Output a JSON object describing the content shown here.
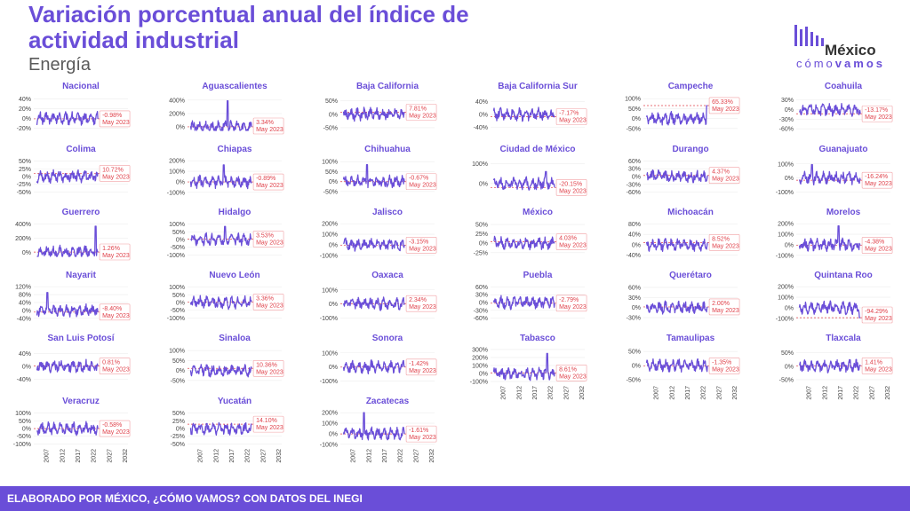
{
  "header": {
    "title": "Variación porcentual anual del índice de actividad industrial",
    "subtitle": "Energía"
  },
  "logo": {
    "main": "México",
    "sub_a": "cómo",
    "sub_b": "vamos"
  },
  "footer": {
    "text": "ELABORADO POR MÉXICO, ¿CÓMO VAMOS? CON DATOS DEL INEGI"
  },
  "colors": {
    "line": "#6a4ed8",
    "accent": "#e0424b",
    "grid": "#eeeeee"
  },
  "chart_data": {
    "type": "line",
    "x_ticks": [
      2007,
      2012,
      2017,
      2022,
      2027,
      2032
    ],
    "xlim": [
      2003,
      2033
    ],
    "series_range": [
      2004,
      2023.4
    ],
    "last_period": "May 2023",
    "grid": true,
    "panels": [
      {
        "name": "Nacional",
        "last_value": "-0.98%",
        "y_ticks": [
          "-20%",
          "0%",
          "20%",
          "40%"
        ],
        "ylim": [
          -25,
          45
        ],
        "spikes": []
      },
      {
        "name": "Aguascalientes",
        "last_value": "3.34%",
        "y_ticks": [
          "0%",
          "200%",
          "400%"
        ],
        "ylim": [
          -50,
          450
        ],
        "spikes": [
          {
            "x": 2015.8,
            "y": 390
          }
        ]
      },
      {
        "name": "Baja California",
        "last_value": "7.81%",
        "y_ticks": [
          "-50%",
          "0%",
          "50%"
        ],
        "ylim": [
          -60,
          65
        ],
        "spikes": []
      },
      {
        "name": "Baja California Sur",
        "last_value": "-7.17%",
        "y_ticks": [
          "-40%",
          "0%",
          "40%"
        ],
        "ylim": [
          -50,
          55
        ],
        "spikes": []
      },
      {
        "name": "Campeche",
        "last_value": "65.33%",
        "y_ticks": [
          "-50%",
          "0%",
          "50%",
          "100%"
        ],
        "ylim": [
          -60,
          110
        ],
        "spikes": [
          {
            "x": 2023.3,
            "y": 65
          }
        ]
      },
      {
        "name": "Coahuila",
        "last_value": "-13.17%",
        "y_ticks": [
          "-60%",
          "-30%",
          "0%",
          "30%"
        ],
        "ylim": [
          -65,
          40
        ],
        "spikes": []
      },
      {
        "name": "Colima",
        "last_value": "10.72%",
        "y_ticks": [
          "-50%",
          "-25%",
          "0%",
          "25%",
          "50%"
        ],
        "ylim": [
          -55,
          55
        ],
        "spikes": []
      },
      {
        "name": "Chiapas",
        "last_value": "-0.89%",
        "y_ticks": [
          "-100%",
          "0%",
          "100%",
          "200%"
        ],
        "ylim": [
          -110,
          210
        ],
        "spikes": [
          {
            "x": 2014.5,
            "y": 160
          }
        ]
      },
      {
        "name": "Chihuahua",
        "last_value": "-0.67%",
        "y_ticks": [
          "-50%",
          "0%",
          "50%",
          "100%"
        ],
        "ylim": [
          -60,
          110
        ],
        "spikes": [
          {
            "x": 2011.5,
            "y": 85
          }
        ]
      },
      {
        "name": "Ciudad de México",
        "last_value": "-20.15%",
        "y_ticks": [
          "0%",
          "100%"
        ],
        "ylim": [
          -50,
          120
        ],
        "spikes": [
          {
            "x": 2020.6,
            "y": 60
          }
        ]
      },
      {
        "name": "Durango",
        "last_value": "4.37%",
        "y_ticks": [
          "-60%",
          "-30%",
          "0%",
          "30%",
          "60%"
        ],
        "ylim": [
          -65,
          65
        ],
        "spikes": []
      },
      {
        "name": "Guanajuato",
        "last_value": "-16.24%",
        "y_ticks": [
          "-100%",
          "0%",
          "100%"
        ],
        "ylim": [
          -110,
          130
        ],
        "spikes": [
          {
            "x": 2008,
            "y": 95
          }
        ]
      },
      {
        "name": "Guerrero",
        "last_value": "1.26%",
        "y_ticks": [
          "0%",
          "200%",
          "400%"
        ],
        "ylim": [
          -60,
          420
        ],
        "spikes": [
          {
            "x": 2022.7,
            "y": 370
          }
        ]
      },
      {
        "name": "Hidalgo",
        "last_value": "3.53%",
        "y_ticks": [
          "-100%",
          "-50%",
          "0%",
          "50%",
          "100%"
        ],
        "ylim": [
          -110,
          110
        ],
        "spikes": [
          {
            "x": 2015,
            "y": 85
          }
        ]
      },
      {
        "name": "Jalisco",
        "last_value": "-3.15%",
        "y_ticks": [
          "-100%",
          "0%",
          "100%",
          "200%"
        ],
        "ylim": [
          -110,
          210
        ],
        "spikes": []
      },
      {
        "name": "México",
        "last_value": "4.03%",
        "y_ticks": [
          "-25%",
          "0%",
          "25%",
          "50%"
        ],
        "ylim": [
          -35,
          55
        ],
        "spikes": []
      },
      {
        "name": "Michoacán",
        "last_value": "8.52%",
        "y_ticks": [
          "-40%",
          "0%",
          "40%",
          "80%"
        ],
        "ylim": [
          -45,
          85
        ],
        "spikes": []
      },
      {
        "name": "Morelos",
        "last_value": "-4.38%",
        "y_ticks": [
          "-100%",
          "0%",
          "100%",
          "200%"
        ],
        "ylim": [
          -110,
          210
        ],
        "spikes": [
          {
            "x": 2016.5,
            "y": 180
          }
        ]
      },
      {
        "name": "Nayarit",
        "last_value": "-8.40%",
        "y_ticks": [
          "-40%",
          "0%",
          "40%",
          "80%",
          "120%"
        ],
        "ylim": [
          -45,
          125
        ],
        "spikes": [
          {
            "x": 2007.3,
            "y": 90
          }
        ]
      },
      {
        "name": "Nuevo León",
        "last_value": "3.36%",
        "y_ticks": [
          "-100%",
          "-50%",
          "0%",
          "50%",
          "100%"
        ],
        "ylim": [
          -110,
          110
        ],
        "spikes": []
      },
      {
        "name": "Oaxaca",
        "last_value": "2.34%",
        "y_ticks": [
          "-100%",
          "0%",
          "100%"
        ],
        "ylim": [
          -110,
          130
        ],
        "spikes": []
      },
      {
        "name": "Puebla",
        "last_value": "-2.79%",
        "y_ticks": [
          "-60%",
          "-30%",
          "0%",
          "30%",
          "60%"
        ],
        "ylim": [
          -65,
          65
        ],
        "spikes": []
      },
      {
        "name": "Querétaro",
        "last_value": "2.00%",
        "y_ticks": [
          "-30%",
          "0%",
          "30%",
          "60%"
        ],
        "ylim": [
          -35,
          65
        ],
        "spikes": []
      },
      {
        "name": "Quintana Roo",
        "last_value": "-94.29%",
        "y_ticks": [
          "-100%",
          "0%",
          "100%",
          "200%"
        ],
        "ylim": [
          -110,
          210
        ],
        "spikes": [
          {
            "x": 2023.2,
            "y": -94
          }
        ]
      },
      {
        "name": "San Luis Potosí",
        "last_value": "0.81%",
        "y_ticks": [
          "-40%",
          "0%",
          "40%"
        ],
        "ylim": [
          -50,
          55
        ],
        "spikes": []
      },
      {
        "name": "Sinaloa",
        "last_value": "10.36%",
        "y_ticks": [
          "-50%",
          "0%",
          "50%",
          "100%"
        ],
        "ylim": [
          -60,
          110
        ],
        "spikes": []
      },
      {
        "name": "Sonora",
        "last_value": "-1.42%",
        "y_ticks": [
          "-100%",
          "0%",
          "100%"
        ],
        "ylim": [
          -110,
          130
        ],
        "spikes": []
      },
      {
        "name": "Tabasco",
        "last_value": "8.61%",
        "y_ticks": [
          "-100%",
          "0%",
          "100%",
          "200%",
          "300%"
        ],
        "ylim": [
          -110,
          310
        ],
        "spikes": [
          {
            "x": 2021,
            "y": 250
          }
        ]
      },
      {
        "name": "Tamaulipas",
        "last_value": "-1.35%",
        "y_ticks": [
          "-50%",
          "0%",
          "50%"
        ],
        "ylim": [
          -60,
          60
        ],
        "spikes": []
      },
      {
        "name": "Tlaxcala",
        "last_value": "1.41%",
        "y_ticks": [
          "-50%",
          "0%",
          "50%"
        ],
        "ylim": [
          -60,
          65
        ],
        "spikes": []
      },
      {
        "name": "Veracruz",
        "last_value": "-0.58%",
        "y_ticks": [
          "-100%",
          "-50%",
          "0%",
          "50%",
          "100%"
        ],
        "ylim": [
          -110,
          110
        ],
        "spikes": []
      },
      {
        "name": "Yucatán",
        "last_value": "14.10%",
        "y_ticks": [
          "-50%",
          "-25%",
          "0%",
          "25%",
          "50%"
        ],
        "ylim": [
          -55,
          55
        ],
        "spikes": []
      },
      {
        "name": "Zacatecas",
        "last_value": "-1.61%",
        "y_ticks": [
          "-100%",
          "0%",
          "100%",
          "200%"
        ],
        "ylim": [
          -110,
          210
        ],
        "spikes": [
          {
            "x": 2010.5,
            "y": 200
          }
        ]
      }
    ]
  }
}
